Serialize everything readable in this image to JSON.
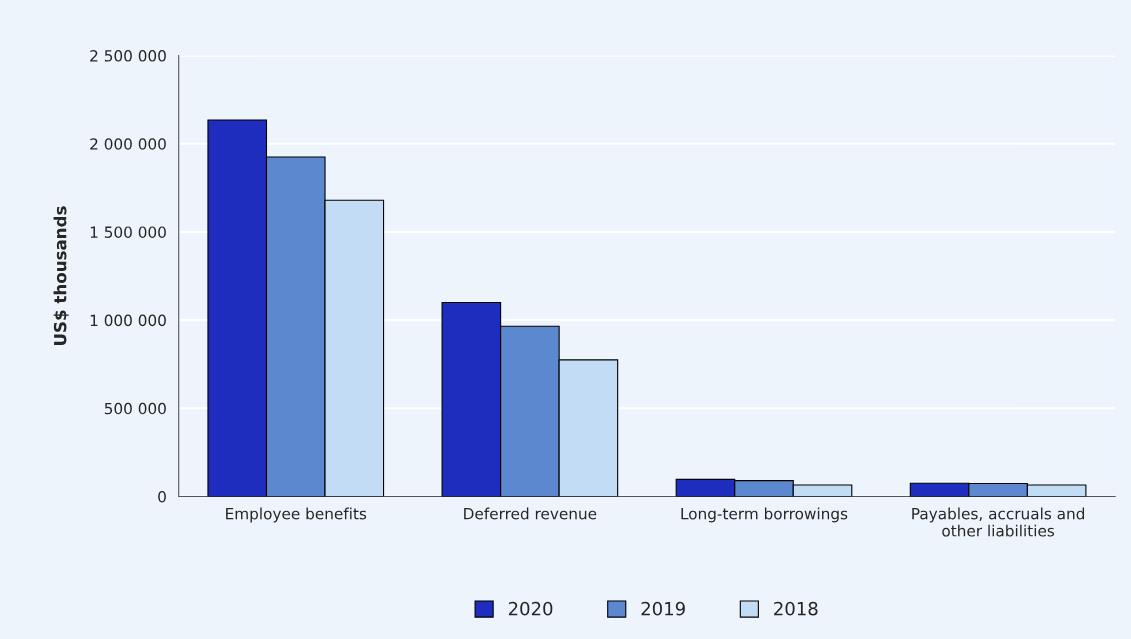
{
  "chart_data": {
    "type": "bar",
    "ylabel": "US$ thousands",
    "categories": [
      "Employee benefits",
      "Deferred revenue",
      "Long-term borrowings",
      "Payables, accruals and\nother liabilities"
    ],
    "series": [
      {
        "name": "2020",
        "color": "#1f2dbe",
        "values": [
          2135000,
          1100000,
          97000,
          75000
        ]
      },
      {
        "name": "2019",
        "color": "#5b88cf",
        "values": [
          1925000,
          965000,
          90000,
          74000
        ]
      },
      {
        "name": "2018",
        "color": "#c3dcf6",
        "values": [
          1680000,
          775000,
          65000,
          65000
        ]
      }
    ],
    "ylim": [
      0,
      2500000
    ],
    "yticks": [
      0,
      {
        "value": 500000,
        "label": "500 000"
      },
      {
        "value": 1000000,
        "label": "1 000 000"
      },
      {
        "value": 1500000,
        "label": "1 500 000"
      },
      {
        "value": 2000000,
        "label": "2 000 000"
      },
      {
        "value": 2500000,
        "label": "2 500 000"
      }
    ],
    "grid": "y",
    "legend": "bottom"
  }
}
